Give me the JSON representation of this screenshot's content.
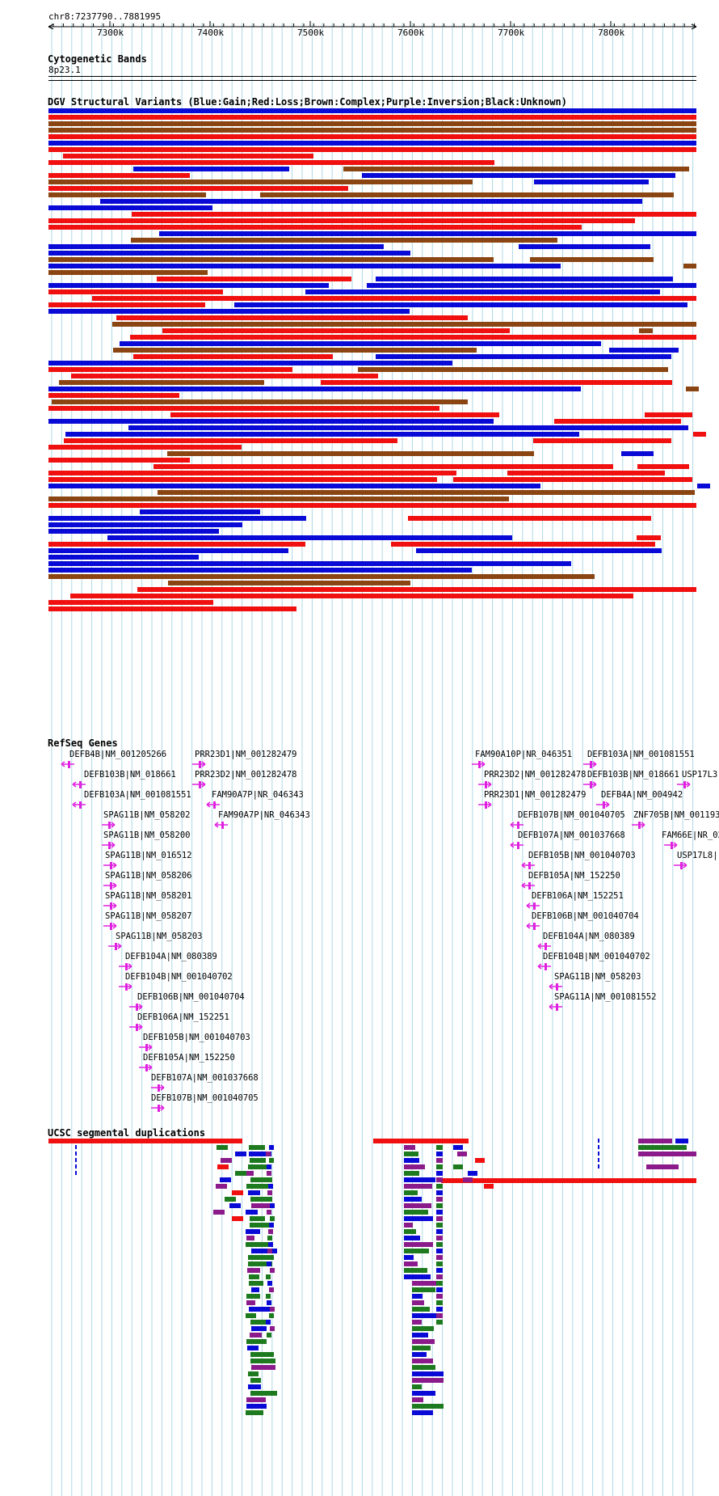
{
  "header": {
    "position": "chr8:7237790..7881995",
    "ticks": [
      "7300k",
      "7400k",
      "7500k",
      "7600k",
      "7700k",
      "7800k"
    ]
  },
  "tracks": {
    "cytoband": {
      "title": "Cytogenetic Bands",
      "band": "8p23.1"
    },
    "dgv": {
      "title": "DGV Structural Variants (Blue:Gain;Red:Loss;Brown:Complex;Purple:Inversion;Black:Unknown)"
    },
    "refseq": {
      "title": "RefSeq Genes"
    },
    "segdups": {
      "title": "UCSC segmental duplications"
    }
  },
  "colors": {
    "gain": "#0a0ad6",
    "loss": "#f01010",
    "complex": "#8b4513",
    "inversion": "#8b1a8b",
    "unknown": "#000000",
    "gene": "#e020e0",
    "grid": "#add8e6",
    "segdup_red": "#f01010",
    "segdup_green": "#1e7a1e",
    "segdup_blue": "#0a0ad6",
    "segdup_purple": "#8b1a8b"
  },
  "genes": {
    "left": [
      "DEFB4B|NM_001205266",
      "DEFB103B|NM_018661",
      "DEFB103A|NM_001081551",
      "SPAG11B|NM_058202",
      "SPAG11B|NM_058200",
      "SPAG11B|NM_016512",
      "SPAG11B|NM_058206",
      "SPAG11B|NM_058201",
      "SPAG11B|NM_058207",
      "SPAG11B|NM_058203",
      "DEFB104A|NM_080389",
      "DEFB104B|NM_001040702",
      "DEFB106B|NM_001040704",
      "DEFB106A|NM_152251",
      "DEFB105B|NM_001040703",
      "DEFB105A|NM_152250",
      "DEFB107A|NM_001037668",
      "DEFB107B|NM_001040705"
    ],
    "mid": [
      "PRR23D1|NM_001282479",
      "PRR23D2|NM_001282478",
      "FAM90A7P|NR_046343",
      "FAM90A7P|NR_046343"
    ],
    "right_mid": [
      "FAM90A10P|NR_046351",
      "PRR23D2|NM_001282478",
      "PRR23D1|NM_001282479",
      "DEFB107B|NM_001040705",
      "DEFB107A|NM_001037668",
      "DEFB105B|NM_001040703",
      "DEFB105A|NM_152250",
      "DEFB106A|NM_152251",
      "DEFB106B|NM_001040704",
      "DEFB104A|NM_080389",
      "DEFB104B|NM_001040702",
      "SPAG11B|NM_058203",
      "SPAG11A|NM_001081552"
    ],
    "right": [
      "DEFB103A|NM_001081551",
      "DEFB103B|NM_018661",
      "USP17L3",
      "DEFB4A|NM_004942",
      "ZNF705B|NM_0011936",
      "FAM66E|NR_02",
      "USP17L8|"
    ]
  }
}
